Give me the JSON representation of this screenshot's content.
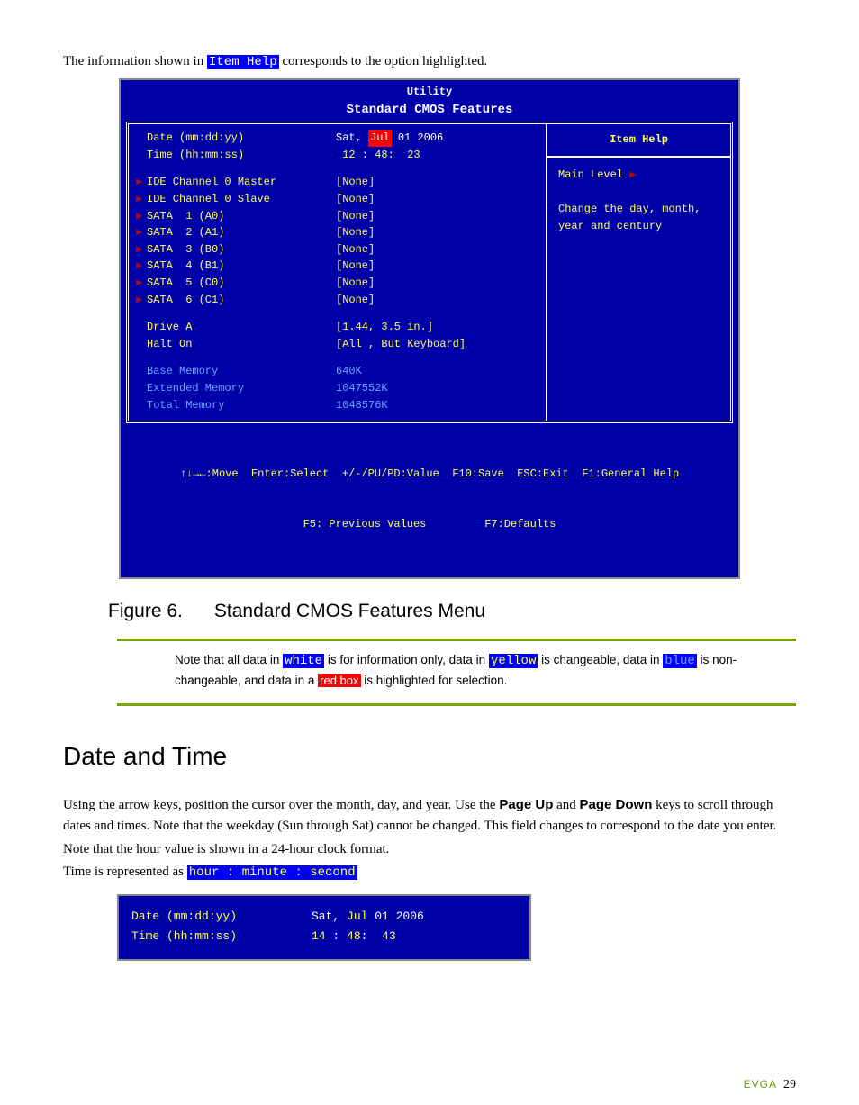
{
  "lead": {
    "pre": "The information shown in ",
    "code": "Item Help",
    "post": " corresponds to the option highlighted."
  },
  "bios": {
    "util": "Utility",
    "title": "Standard CMOS Features",
    "date_label": "Date (mm:dd:yy)",
    "time_label": "Time (hh:mm:ss)",
    "date_prefix": "Sat, ",
    "date_month": "Jul",
    "date_rest": " 01 2006",
    "time_h": "12",
    "time_m": "48",
    "time_s": "23",
    "rows": [
      {
        "arrow": true,
        "label": "IDE Channel 0 Master",
        "value": "[None]",
        "color": "yellow"
      },
      {
        "arrow": true,
        "label": "IDE Channel 0 Slave",
        "value": "[None]",
        "color": "yellow"
      },
      {
        "arrow": true,
        "label": "SATA  1 (A0)",
        "value": "[None]",
        "color": "yellow"
      },
      {
        "arrow": true,
        "label": "SATA  2 (A1)",
        "value": "[None]",
        "color": "yellow"
      },
      {
        "arrow": true,
        "label": "SATA  3 (B0)",
        "value": "[None]",
        "color": "yellow"
      },
      {
        "arrow": true,
        "label": "SATA  4 (B1)",
        "value": "[None]",
        "color": "yellow"
      },
      {
        "arrow": true,
        "label": "SATA  5 (C0)",
        "value": "[None]",
        "color": "yellow"
      },
      {
        "arrow": true,
        "label": "SATA  6 (C1)",
        "value": "[None]",
        "color": "yellow"
      }
    ],
    "drive_a_label": "Drive A",
    "drive_a_value": "[1.44, 3.5 in.]",
    "halt_label": "Halt On",
    "halt_value": "[All , But Keyboard]",
    "mem": [
      {
        "label": "Base Memory",
        "value": "640K"
      },
      {
        "label": "Extended Memory",
        "value": "1047552K"
      },
      {
        "label": "Total Memory",
        "value": "1048576K"
      }
    ],
    "help_title": "Item Help",
    "help_main": "Main Level",
    "help_text": "Change the day, month, year and century",
    "footer1": "↑↓→←:Move  Enter:Select  +/-/PU/PD:Value  F10:Save  ESC:Exit  F1:General Help",
    "footer2": "F5: Previous Values         F7:Defaults"
  },
  "figure": {
    "num": "Figure 6.",
    "title": "Standard CMOS Features Menu"
  },
  "note": {
    "t1": "Note that all data in ",
    "white": "white",
    "t2": " is for information only, data in ",
    "yellow": "yellow",
    "t3": " is changeable, data in ",
    "blue": "blue",
    "t4": " is non-changeable, and data in a ",
    "redbox": "red box",
    "t5": " is highlighted for selection."
  },
  "section": {
    "heading": "Date and Time",
    "p1a": "Using the arrow keys, position the cursor over the month, day, and year. Use the ",
    "pu": "Page Up",
    "p1b": " and ",
    "pd": "Page Down",
    "p1c": " keys to scroll through dates and times. Note that the weekday (Sun through Sat) cannot be changed. This field changes to correspond to the date you enter.",
    "p2": "Note that the hour value is shown in a 24-hour clock format.",
    "p3a": "Time is represented as ",
    "fmt": "hour : minute : second"
  },
  "mini": {
    "date_label": "Date (mm:dd:yy)",
    "time_label": "Time (hh:mm:ss)",
    "date_prefix": "Sat, ",
    "date_month": "Jul",
    "date_rest": " 01 2006",
    "time_h": "14",
    "time_m": "48",
    "time_s": "43"
  },
  "footer": {
    "brand": "EVGA",
    "page": "29"
  },
  "colors": {
    "bios_bg": "#0000a8",
    "yellow": "#ffff55",
    "white": "#ffffff",
    "lightblue": "#6aa7ff",
    "accent_green": "#79a500",
    "hl_blue": "#0000ff",
    "hl_red": "#ff0000"
  }
}
